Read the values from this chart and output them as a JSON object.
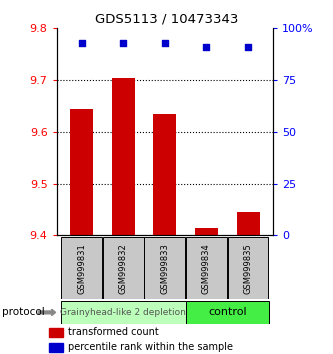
{
  "title": "GDS5113 / 10473343",
  "categories": [
    "GSM999831",
    "GSM999832",
    "GSM999833",
    "GSM999834",
    "GSM999835"
  ],
  "bar_values": [
    9.645,
    9.705,
    9.635,
    9.415,
    9.445
  ],
  "bar_bottom": 9.4,
  "percentile_values": [
    93,
    93,
    93,
    91,
    91
  ],
  "bar_color": "#cc0000",
  "dot_color": "#0000cc",
  "ylim_left": [
    9.4,
    9.8
  ],
  "ylim_right": [
    0,
    100
  ],
  "yticks_left": [
    9.4,
    9.5,
    9.6,
    9.7,
    9.8
  ],
  "ytick_labels_left": [
    "9.4",
    "9.5",
    "9.6",
    "9.7",
    "9.8"
  ],
  "yticks_right": [
    0,
    25,
    50,
    75,
    100
  ],
  "ytick_labels_right": [
    "0",
    "25",
    "50",
    "75",
    "100%"
  ],
  "group1_label": "Grainyhead-like 2 depletion",
  "group2_label": "control",
  "group1_color": "#bbffbb",
  "group2_color": "#44ee44",
  "group1_indices": [
    0,
    1,
    2
  ],
  "group2_indices": [
    3,
    4
  ],
  "protocol_label": "protocol",
  "legend_bar_label": "transformed count",
  "legend_dot_label": "percentile rank within the sample",
  "bar_width": 0.55,
  "background_color": "#ffffff",
  "gridline_values": [
    9.5,
    9.6,
    9.7
  ],
  "label_box_color": "#c8c8c8",
  "arrow_color": "#888888"
}
